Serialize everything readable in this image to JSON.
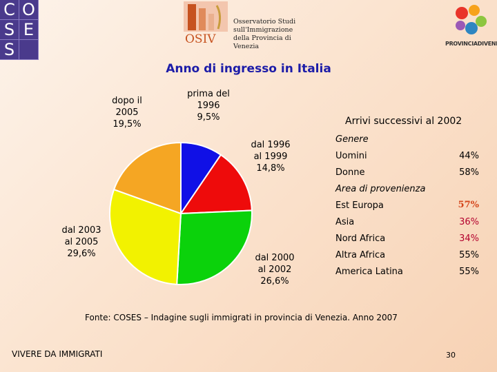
{
  "logos": {
    "coses_letters": [
      "C",
      "O",
      "S",
      "E",
      "S",
      ""
    ],
    "osiv_mark_text": "OSIV",
    "osiv_lines": [
      "Osservatorio Studi",
      "sull'Immigrazione",
      "della Provincia di Venezia"
    ],
    "provincia_text": "PROVINCIADIVENEZIA"
  },
  "chart_data": {
    "type": "pie",
    "title": "Anno di ingresso in Italia",
    "slices": [
      {
        "label": "prima del 1996",
        "value": 9.5,
        "value_label": "9,5%",
        "color": "#1010e6"
      },
      {
        "label": "dal 1996 al 1999",
        "value": 14.8,
        "value_label": "14,8%",
        "color": "#ee0b0b"
      },
      {
        "label": "dal 2000 al 2002",
        "value": 26.6,
        "value_label": "26,6%",
        "color": "#0bd20b"
      },
      {
        "label": "dal 2003 al 2005",
        "value": 29.6,
        "value_label": "29,6%",
        "color": "#f2f200"
      },
      {
        "label": "dopo il 2005",
        "value": 19.5,
        "value_label": "19,5%",
        "color": "#f5a623"
      }
    ],
    "start": "top",
    "direction": "clockwise"
  },
  "labels": {
    "prima": [
      "prima del",
      "1996",
      "9,5%"
    ],
    "dal1996": [
      "dal 1996",
      "al 1999",
      "14,8%"
    ],
    "dal2000": [
      "dal 2000",
      "al 2002",
      "26,6%"
    ],
    "dal2003": [
      "dal 2003",
      "al 2005",
      "29,6%"
    ],
    "dopo": [
      "dopo il",
      "2005",
      "19,5%"
    ]
  },
  "panel": {
    "title": "Arrivi successivi al 2002",
    "genere": {
      "heading": "Genere",
      "rows": [
        {
          "label": "Uomini",
          "value": "44%"
        },
        {
          "label": "Donne",
          "value": "58%"
        }
      ]
    },
    "area": {
      "heading": "Area di provenienza",
      "rows": [
        {
          "label": "Est Europa",
          "value": "57%"
        },
        {
          "label": "Asia",
          "value": "36%"
        },
        {
          "label": "Nord Africa",
          "value": "34%"
        },
        {
          "label": "Altra Africa",
          "value": "55%"
        },
        {
          "label": "America Latina",
          "value": "55%"
        }
      ]
    }
  },
  "source": "Fonte: COSES – Indagine sugli immigrati in provincia di Venezia. Anno 2007",
  "footer": "VIVERE DA IMMIGRATI",
  "page_number": "30",
  "colors": {
    "title": "#1c1ca8",
    "highlight": "#d4451a",
    "coses": "#4a3a8c"
  }
}
